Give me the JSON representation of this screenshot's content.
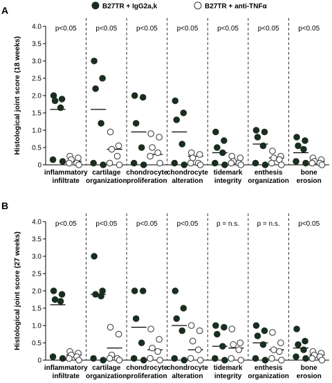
{
  "legend": {
    "items": [
      {
        "label": "B27TR + IgG2a,k",
        "marker": "filled-circle",
        "color": "#1a2e1f"
      },
      {
        "label": "B27TR + anti-TNFα",
        "marker": "open-circle",
        "color": "#ffffff"
      }
    ]
  },
  "chart_data": [
    {
      "type": "scatter",
      "panel_label": "A",
      "ylabel": "Histological joint score (18 weeks)",
      "ylim": [
        0,
        4.0
      ],
      "yticks": [
        "0",
        "0.5",
        "1.0",
        "1.5",
        "2.0",
        "2.5",
        "3.0",
        "3.5",
        "4.0"
      ],
      "categories": [
        {
          "line1": "inflammatory",
          "line2": "infiltrate",
          "p": "p<0.05",
          "groups": [
            {
              "name": "B27TR + IgG2a,k",
              "values": [
                2.0,
                1.9,
                1.85,
                1.65,
                0.15,
                0.1
              ],
              "mean": 1.6
            },
            {
              "name": "B27TR + anti-TNFα",
              "values": [
                0.25,
                0.2,
                0.15,
                0.05,
                0.05,
                0.0
              ],
              "mean": 0.1
            }
          ]
        },
        {
          "line1": "cartilage",
          "line2": "organization",
          "p": "p<0.05",
          "groups": [
            {
              "name": "B27TR + IgG2a,k",
              "values": [
                3.0,
                2.5,
                2.2,
                1.2,
                0.05,
                0.0
              ],
              "mean": 1.6
            },
            {
              "name": "B27TR + anti-TNFα",
              "values": [
                0.95,
                0.55,
                0.45,
                0.25,
                0.05,
                0.0
              ],
              "mean": 0.45
            }
          ]
        },
        {
          "line1": "chondrocyte",
          "line2": "proliferation",
          "p": "p<0.05",
          "groups": [
            {
              "name": "B27TR + IgG2a,k",
              "values": [
                2.0,
                1.95,
                1.2,
                0.5,
                0.05,
                0.0
              ],
              "mean": 0.95
            },
            {
              "name": "B27TR + anti-TNFα",
              "values": [
                0.9,
                0.8,
                0.5,
                0.35,
                0.25,
                0.05
              ],
              "mean": 0.3
            }
          ]
        },
        {
          "line1": "chondrocyte",
          "line2": "alteration",
          "p": "p<0.05",
          "groups": [
            {
              "name": "B27TR + IgG2a,k",
              "values": [
                1.85,
                1.5,
                1.3,
                0.6,
                0.05,
                0.0
              ],
              "mean": 0.95
            },
            {
              "name": "B27TR + anti-TNFα",
              "values": [
                0.35,
                0.3,
                0.2,
                0.05,
                0.05,
                0.0
              ],
              "mean": 0.25
            }
          ]
        },
        {
          "line1": "tidemark",
          "line2": "integrity",
          "p": "p<0.05",
          "groups": [
            {
              "name": "B27TR + IgG2a,k",
              "values": [
                0.95,
                0.7,
                0.5,
                0.35,
                0.05,
                0.0
              ],
              "mean": 0.35
            },
            {
              "name": "B27TR + anti-TNFα",
              "values": [
                0.25,
                0.2,
                0.1,
                0.05,
                0.05,
                0.0
              ],
              "mean": 0.05
            }
          ]
        },
        {
          "line1": "enthesis",
          "line2": "organization",
          "p": "p<0.05",
          "groups": [
            {
              "name": "B27TR + IgG2a,k",
              "values": [
                1.0,
                0.95,
                0.8,
                0.55,
                0.05,
                0.0
              ],
              "mean": 0.6
            },
            {
              "name": "B27TR + anti-TNFα",
              "values": [
                0.4,
                0.25,
                0.2,
                0.15,
                0.05,
                0.0
              ],
              "mean": 0.2
            }
          ]
        },
        {
          "line1": "bone",
          "line2": "erosion",
          "p": "p<0.05",
          "groups": [
            {
              "name": "B27TR + IgG2a,k",
              "values": [
                0.8,
                0.7,
                0.55,
                0.45,
                0.1,
                0.05
              ],
              "mean": 0.35
            },
            {
              "name": "B27TR + anti-TNFα",
              "values": [
                0.2,
                0.15,
                0.1,
                0.05,
                0.05,
                0.0
              ],
              "mean": 0.1
            }
          ]
        }
      ]
    },
    {
      "type": "scatter",
      "panel_label": "B",
      "ylabel": "Histological joint score (27 weeks)",
      "ylim": [
        0,
        4.0
      ],
      "yticks": [
        "0",
        "0.5",
        "1.0",
        "1.5",
        "2.0",
        "2.5",
        "3.0",
        "3.5",
        "4.0"
      ],
      "categories": [
        {
          "line1": "inflammatory",
          "line2": "infiltrate",
          "p": "p<0.05",
          "groups": [
            {
              "name": "B27TR + IgG2a,k",
              "values": [
                2.0,
                1.9,
                1.75,
                1.7,
                0.1,
                0.05
              ],
              "mean": 1.6
            },
            {
              "name": "B27TR + anti-TNFα",
              "values": [
                0.25,
                0.2,
                0.15,
                0.1,
                0.05,
                0.0
              ],
              "mean": 0.15
            }
          ]
        },
        {
          "line1": "cartilage",
          "line2": "organization",
          "p": "p<0.05",
          "groups": [
            {
              "name": "B27TR + IgG2a,k",
              "values": [
                3.0,
                2.0,
                1.9,
                1.85,
                0.05,
                0.0
              ],
              "mean": 1.9
            },
            {
              "name": "B27TR + anti-TNFα",
              "values": [
                0.95,
                0.75,
                0.15,
                0.05,
                0.05,
                0.0
              ],
              "mean": 0.35
            }
          ]
        },
        {
          "line1": "chondrocyte",
          "line2": "proliferation",
          "p": "p<0.05",
          "groups": [
            {
              "name": "B27TR + IgG2a,k",
              "values": [
                2.0,
                2.0,
                1.2,
                0.5,
                0.05,
                0.0
              ],
              "mean": 0.95
            },
            {
              "name": "B27TR + anti-TNFα",
              "values": [
                0.9,
                0.6,
                0.35,
                0.25,
                0.05,
                0.0
              ],
              "mean": 0.3
            }
          ]
        },
        {
          "line1": "chondrocyte",
          "line2": "alteration",
          "p": "p<0.05",
          "groups": [
            {
              "name": "B27TR + IgG2a,k",
              "values": [
                2.0,
                1.5,
                1.2,
                0.85,
                0.05,
                0.0
              ],
              "mean": 1.0
            },
            {
              "name": "B27TR + anti-TNFα",
              "values": [
                1.0,
                0.85,
                0.55,
                0.3,
                0.05,
                0.0
              ],
              "mean": 0.3
            }
          ]
        },
        {
          "line1": "tidemark",
          "line2": "integrity",
          "p": "p = n.s.",
          "groups": [
            {
              "name": "B27TR + IgG2a,k",
              "values": [
                1.0,
                0.95,
                0.75,
                0.4,
                0.05,
                0.0
              ],
              "mean": 0.4
            },
            {
              "name": "B27TR + anti-TNFα",
              "values": [
                0.9,
                0.5,
                0.45,
                0.3,
                0.05,
                0.0
              ],
              "mean": 0.35
            }
          ]
        },
        {
          "line1": "enthesis",
          "line2": "organization",
          "p": "p = n.s.",
          "groups": [
            {
              "name": "B27TR + IgG2a,k",
              "values": [
                1.0,
                0.85,
                0.7,
                0.45,
                0.05,
                0.0
              ],
              "mean": 0.5
            },
            {
              "name": "B27TR + anti-TNFα",
              "values": [
                0.8,
                0.5,
                0.3,
                0.25,
                0.05,
                0.0
              ],
              "mean": 0.3
            }
          ]
        },
        {
          "line1": "bone",
          "line2": "erosion",
          "p": "p<0.05",
          "groups": [
            {
              "name": "B27TR + IgG2a,k",
              "values": [
                0.9,
                0.55,
                0.45,
                0.3,
                0.1,
                0.05
              ],
              "mean": 0.35
            },
            {
              "name": "B27TR + anti-TNFα",
              "values": [
                0.25,
                0.2,
                0.15,
                0.1,
                0.05,
                0.0
              ],
              "mean": 0.15
            }
          ]
        }
      ]
    }
  ]
}
